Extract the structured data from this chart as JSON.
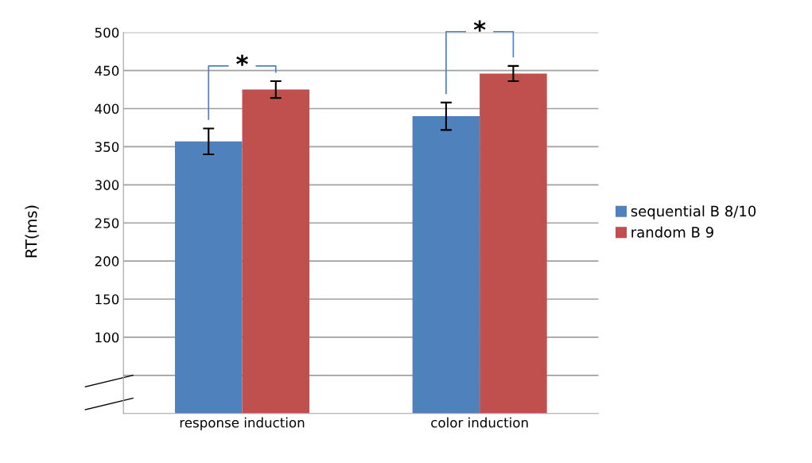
{
  "chart_data": {
    "type": "bar",
    "ylabel": "RT(ms)",
    "categories": [
      "response induction",
      "color induction"
    ],
    "series": [
      {
        "name": "sequential B 8/10",
        "color": "#4f81bd",
        "values": [
          357,
          390
        ],
        "errors": [
          17,
          18
        ]
      },
      {
        "name": "random B 9",
        "color": "#c0504d",
        "values": [
          425,
          446
        ],
        "errors": [
          11,
          10
        ]
      }
    ],
    "ylim": [
      0,
      500
    ],
    "yticks": [
      {
        "value": 50,
        "label": null
      },
      100,
      150,
      200,
      250,
      300,
      350,
      400,
      450,
      500
    ],
    "grid": "y",
    "legend": "right",
    "annotations": [
      "*",
      "*"
    ]
  }
}
